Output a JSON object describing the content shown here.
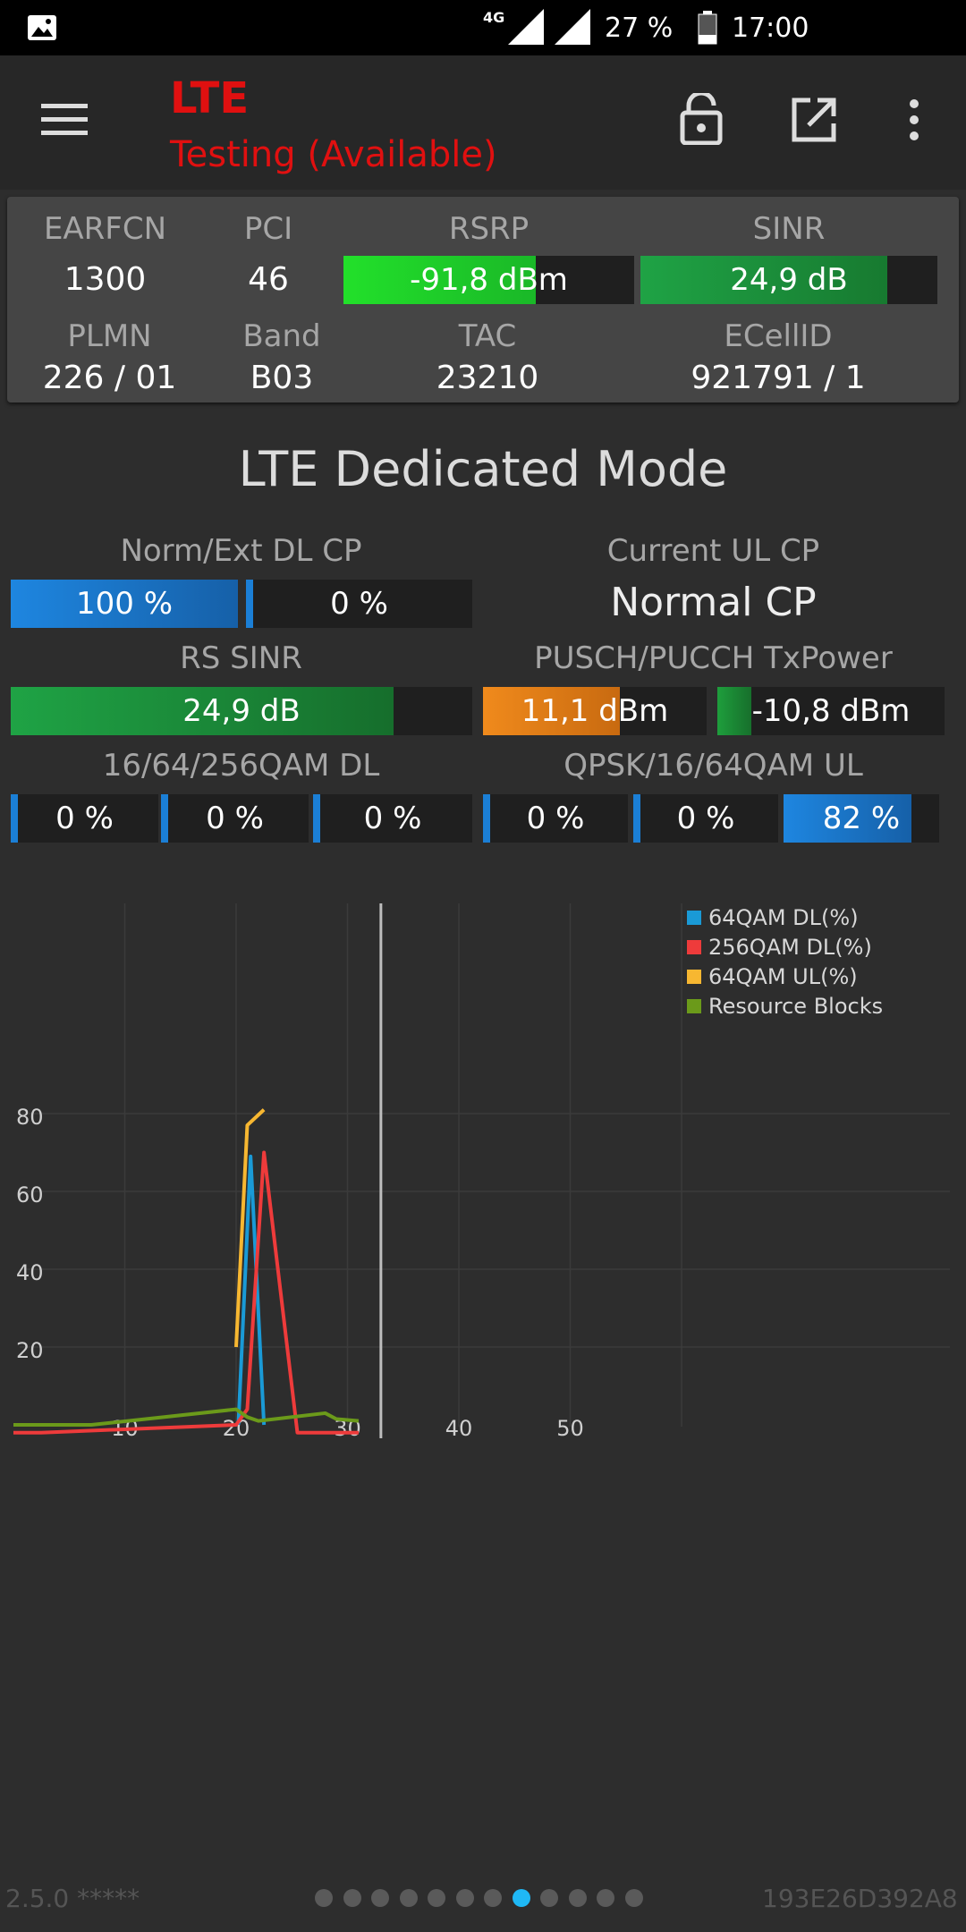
{
  "status_bar": {
    "network": "4G",
    "battery": "27 %",
    "time": "17:00"
  },
  "app_bar": {
    "title": "LTE",
    "subtitle": "Testing (Available)"
  },
  "cell_info": {
    "earfcn": {
      "label": "EARFCN",
      "value": "1300"
    },
    "pci": {
      "label": "PCI",
      "value": "46"
    },
    "rsrp": {
      "label": "RSRP",
      "value": "-91,8 dBm",
      "fill": 0.66
    },
    "sinr": {
      "label": "SINR",
      "value": "24,9 dB",
      "fill": 0.83
    },
    "plmn": {
      "label": "PLMN",
      "value": "226 / 01"
    },
    "band": {
      "label": "Band",
      "value": "B03"
    },
    "tac": {
      "label": "TAC",
      "value": "23210"
    },
    "ecellid": {
      "label": "ECellID",
      "value": "921791 / 1"
    }
  },
  "mode_title": "LTE Dedicated Mode",
  "metrics": {
    "norm_ext_dl_cp": {
      "label": "Norm/Ext DL CP",
      "norm": "100 %",
      "ext": "0 %",
      "norm_fill": 1.0,
      "ext_fill": 0.0
    },
    "current_ul_cp": {
      "label": "Current UL CP",
      "value": "Normal CP"
    },
    "rs_sinr": {
      "label": "RS SINR",
      "value": "24,9 dB",
      "fill": 0.83
    },
    "pusch_pucch": {
      "label": "PUSCH/PUCCH TxPower",
      "pusch": "11,1 dBm",
      "pucch": "-10,8 dBm",
      "pusch_fill": 0.61,
      "pucch_fill": 0.15
    },
    "qam_dl": {
      "label": "16/64/256QAM DL",
      "values": [
        "0 %",
        "0 %",
        "0 %"
      ],
      "fills": [
        0,
        0,
        0
      ]
    },
    "qam_ul": {
      "label": "QPSK/16/64QAM UL",
      "values": [
        "0 %",
        "0 %",
        "82 %"
      ],
      "fills": [
        0,
        0,
        0.82
      ]
    }
  },
  "chart_data": {
    "type": "line",
    "xlim": [
      0,
      60
    ],
    "ylim": [
      0,
      100
    ],
    "x_ticks": [
      "10",
      "20",
      "30",
      "40",
      "50"
    ],
    "y_ticks": [
      "20",
      "40",
      "60",
      "80"
    ],
    "cursor_x": 33,
    "legend_position": "top-right",
    "series": [
      {
        "name": "64QAM DL(%)",
        "color": "#1a9ad6",
        "points": [
          [
            20.2,
            0
          ],
          [
            21.3,
            69
          ],
          [
            22.5,
            0
          ]
        ]
      },
      {
        "name": "256QAM DL(%)",
        "color": "#ee3b3b",
        "points": [
          [
            0,
            -2
          ],
          [
            2.5,
            -2
          ],
          [
            20,
            0
          ],
          [
            21,
            4
          ],
          [
            22.5,
            70
          ],
          [
            25.5,
            -2
          ],
          [
            31,
            -2
          ]
        ]
      },
      {
        "name": "64QAM UL(%)",
        "color": "#f7b731",
        "points": [
          [
            20,
            20
          ],
          [
            21,
            77
          ],
          [
            22.5,
            81
          ]
        ]
      },
      {
        "name": "Resource Blocks",
        "color": "#6b9a1a",
        "points": [
          [
            0,
            0
          ],
          [
            7,
            0
          ],
          [
            20,
            4
          ],
          [
            21,
            2
          ],
          [
            22,
            1
          ],
          [
            28,
            3
          ],
          [
            29,
            1.5
          ],
          [
            31,
            1
          ]
        ]
      }
    ]
  },
  "footer": {
    "version": "2.5.0 *****",
    "device_id": "193E26D392A8",
    "page_count": 12,
    "active_page": 7
  },
  "colors": {
    "accent_red": "#e01010",
    "green_bright": "#22e02a",
    "green": "#1e9e3c",
    "blue": "#1b7fd6",
    "orange": "#e57c15"
  }
}
